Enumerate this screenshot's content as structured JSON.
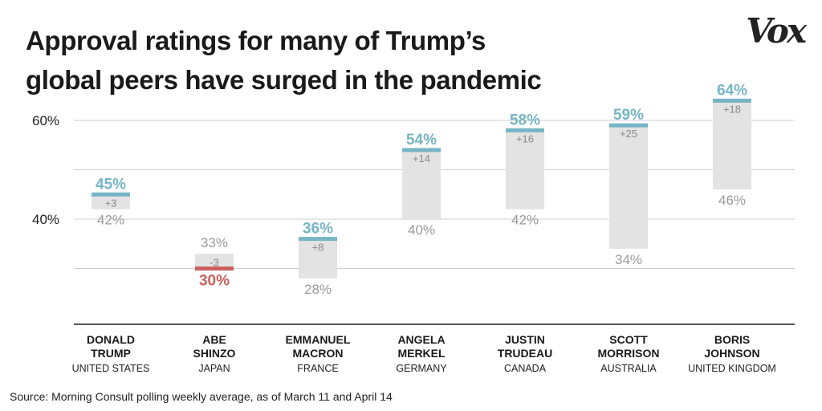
{
  "header": {
    "title_line1": "Approval ratings for many of Trump’s",
    "title_line2": "global peers have surged in the pandemic",
    "logo_text": "Vox"
  },
  "source_note": "Source: Morning Consult polling weekly average, as of March 11 and April 14",
  "colors": {
    "increase": "#76b5c5",
    "decrease": "#c9605e",
    "bar": "#e3e3e3",
    "before_label": "#9a9a9a",
    "change_label": "#8a8a8a",
    "grid": "#cfcfcf",
    "axis": "#555555"
  },
  "chart_data": {
    "type": "bar",
    "subtype": "floating-range",
    "title": "Approval ratings for many of Trump’s global peers have surged in the pandemic",
    "ylim": [
      20,
      64
    ],
    "yticks": [
      {
        "value": 40,
        "label": "40%"
      },
      {
        "value": 60,
        "label": "60%"
      }
    ],
    "gridlines": [
      30,
      40,
      50,
      60
    ],
    "grid": true,
    "leaders": [
      {
        "name_line1": "DONALD",
        "name_line2": "TRUMP",
        "country": "UNITED STATES",
        "before": 42,
        "after": 45,
        "change": "+3",
        "before_label": "42%",
        "after_label": "45%"
      },
      {
        "name_line1": "ABE",
        "name_line2": "SHINZO",
        "country": "JAPAN",
        "before": 33,
        "after": 30,
        "change": "-3",
        "before_label": "33%",
        "after_label": "30%"
      },
      {
        "name_line1": "EMMANUEL",
        "name_line2": "MACRON",
        "country": "FRANCE",
        "before": 28,
        "after": 36,
        "change": "+8",
        "before_label": "28%",
        "after_label": "36%"
      },
      {
        "name_line1": "ANGELA",
        "name_line2": "MERKEL",
        "country": "GERMANY",
        "before": 40,
        "after": 54,
        "change": "+14",
        "before_label": "40%",
        "after_label": "54%"
      },
      {
        "name_line1": "JUSTIN",
        "name_line2": "TRUDEAU",
        "country": "CANADA",
        "before": 42,
        "after": 58,
        "change": "+16",
        "before_label": "42%",
        "after_label": "58%"
      },
      {
        "name_line1": "SCOTT",
        "name_line2": "MORRISON",
        "country": "AUSTRALIA",
        "before": 34,
        "after": 59,
        "change": "+25",
        "before_label": "34%",
        "after_label": "59%"
      },
      {
        "name_line1": "BORIS",
        "name_line2": "JOHNSON",
        "country": "UNITED KINGDOM",
        "before": 46,
        "after": 64,
        "change": "+18",
        "before_label": "46%",
        "after_label": "64%"
      }
    ]
  }
}
